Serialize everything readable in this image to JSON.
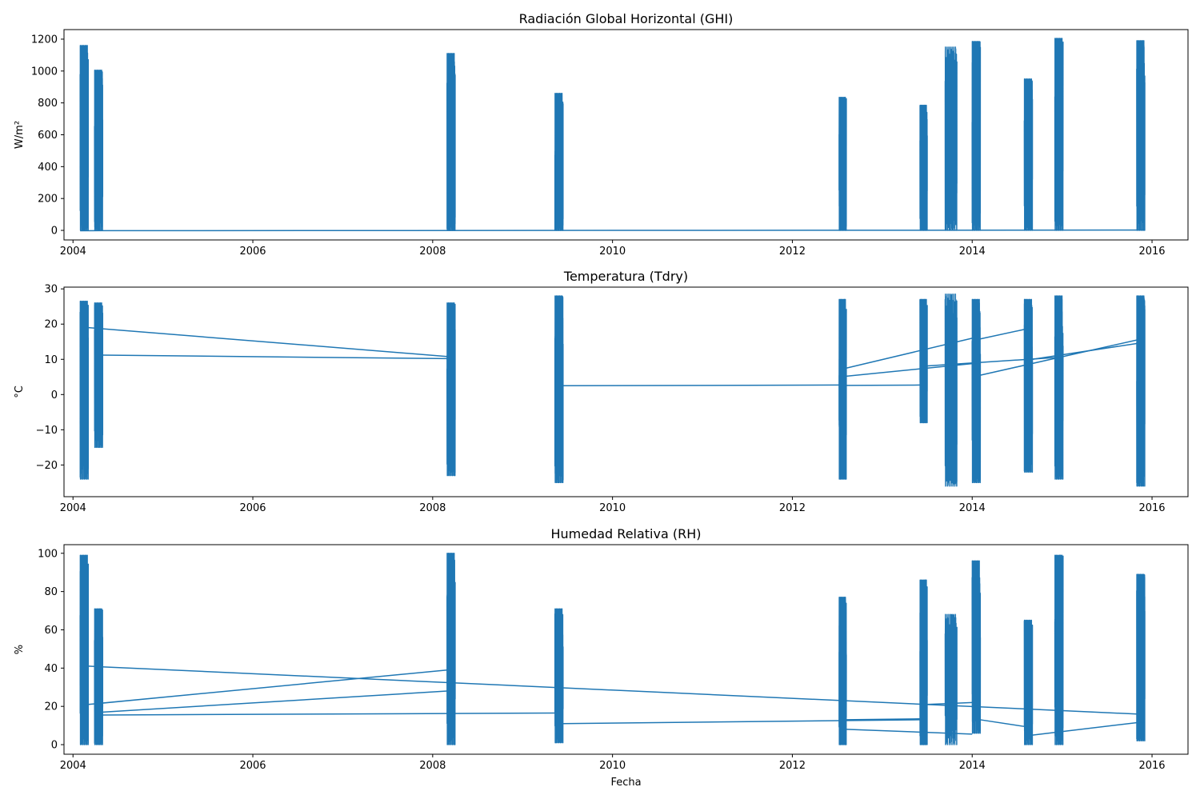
{
  "chart_data": [
    {
      "type": "line",
      "title": "Radiación Global Horizontal (GHI)",
      "xlabel": "",
      "ylabel": "W/m²",
      "xlim": [
        2003.9,
        2016.4
      ],
      "ylim": [
        -60,
        1260
      ],
      "xticks": [
        "2004",
        "2006",
        "2008",
        "2010",
        "2012",
        "2014",
        "2016"
      ],
      "yticks": [
        "0",
        "200",
        "400",
        "600",
        "800",
        "1000",
        "1200"
      ],
      "grid": false,
      "color": "#1f77b4",
      "bursts": [
        {
          "x0": 2004.08,
          "x1": 2004.17,
          "high": 1160,
          "low": 0
        },
        {
          "x0": 2004.24,
          "x1": 2004.33,
          "high": 1005,
          "low": 0
        },
        {
          "x0": 2008.16,
          "x1": 2008.25,
          "high": 1110,
          "low": 0
        },
        {
          "x0": 2009.36,
          "x1": 2009.45,
          "high": 860,
          "low": 0
        },
        {
          "x0": 2012.52,
          "x1": 2012.6,
          "high": 835,
          "low": 0
        },
        {
          "x0": 2013.42,
          "x1": 2013.5,
          "high": 785,
          "low": 0
        },
        {
          "x0": 2013.7,
          "x1": 2013.83,
          "high": 1150,
          "low": 0
        },
        {
          "x0": 2014.0,
          "x1": 2014.09,
          "high": 1185,
          "low": 0
        },
        {
          "x0": 2014.58,
          "x1": 2014.67,
          "high": 950,
          "low": 0
        },
        {
          "x0": 2014.92,
          "x1": 2015.01,
          "high": 1205,
          "low": 0
        },
        {
          "x0": 2015.83,
          "x1": 2015.92,
          "high": 1190,
          "low": 0
        }
      ],
      "connectors": [
        {
          "x": [
            2004.08,
            2015.92
          ],
          "y": [
            -2,
            2
          ]
        }
      ]
    },
    {
      "type": "line",
      "title": "Temperatura (Tdry)",
      "xlabel": "",
      "ylabel": "°C",
      "xlim": [
        2003.9,
        2016.4
      ],
      "ylim": [
        -29,
        30.5
      ],
      "xticks": [
        "2004",
        "2006",
        "2008",
        "2010",
        "2012",
        "2014",
        "2016"
      ],
      "yticks": [
        "−20",
        "−10",
        "0",
        "10",
        "20",
        "30"
      ],
      "grid": false,
      "color": "#1f77b4",
      "bursts": [
        {
          "x0": 2004.08,
          "x1": 2004.17,
          "high": 26.5,
          "low": -24
        },
        {
          "x0": 2004.24,
          "x1": 2004.33,
          "high": 26,
          "low": -15
        },
        {
          "x0": 2008.16,
          "x1": 2008.25,
          "high": 26,
          "low": -23
        },
        {
          "x0": 2009.36,
          "x1": 2009.45,
          "high": 28,
          "low": -25
        },
        {
          "x0": 2012.52,
          "x1": 2012.6,
          "high": 27,
          "low": -24
        },
        {
          "x0": 2013.42,
          "x1": 2013.5,
          "high": 27,
          "low": -8
        },
        {
          "x0": 2013.7,
          "x1": 2013.83,
          "high": 28.5,
          "low": -26
        },
        {
          "x0": 2014.0,
          "x1": 2014.09,
          "high": 27,
          "low": -25
        },
        {
          "x0": 2014.58,
          "x1": 2014.67,
          "high": 27,
          "low": -22
        },
        {
          "x0": 2014.92,
          "x1": 2015.01,
          "high": 28,
          "low": -24
        },
        {
          "x0": 2015.83,
          "x1": 2015.92,
          "high": 28,
          "low": -26
        }
      ],
      "connectors": [
        {
          "x": [
            2004.17,
            2008.16
          ],
          "y": [
            19,
            10.8
          ]
        },
        {
          "x": [
            2004.33,
            2008.16
          ],
          "y": [
            11.2,
            10.2
          ]
        },
        {
          "x": [
            2009.45,
            2012.52
          ],
          "y": [
            2.5,
            2.7
          ]
        },
        {
          "x": [
            2012.6,
            2013.42
          ],
          "y": [
            2.6,
            2.7
          ]
        },
        {
          "x": [
            2012.6,
            2014.0
          ],
          "y": [
            7.5,
            16
          ]
        },
        {
          "x": [
            2012.6,
            2014.09
          ],
          "y": [
            5.2,
            9
          ]
        },
        {
          "x": [
            2014.09,
            2014.58
          ],
          "y": [
            15.8,
            18.5
          ]
        },
        {
          "x": [
            2013.42,
            2014.92
          ],
          "y": [
            8,
            10.5
          ]
        },
        {
          "x": [
            2014.09,
            2015.92
          ],
          "y": [
            5.5,
            16
          ]
        },
        {
          "x": [
            2014.67,
            2015.83
          ],
          "y": [
            10,
            14.5
          ]
        }
      ]
    },
    {
      "type": "line",
      "title": "Humedad Relativa (RH)",
      "xlabel": "Fecha",
      "ylabel": "%",
      "xlim": [
        2003.9,
        2016.4
      ],
      "ylim": [
        -5,
        104.5
      ],
      "xticks": [
        "2004",
        "2006",
        "2008",
        "2010",
        "2012",
        "2014",
        "2016"
      ],
      "yticks": [
        "0",
        "20",
        "40",
        "60",
        "80",
        "100"
      ],
      "grid": false,
      "color": "#1f77b4",
      "bursts": [
        {
          "x0": 2004.08,
          "x1": 2004.17,
          "high": 99,
          "low": 0
        },
        {
          "x0": 2004.24,
          "x1": 2004.33,
          "high": 71,
          "low": 0
        },
        {
          "x0": 2008.16,
          "x1": 2008.25,
          "high": 100,
          "low": 0
        },
        {
          "x0": 2009.36,
          "x1": 2009.45,
          "high": 71,
          "low": 1
        },
        {
          "x0": 2012.52,
          "x1": 2012.6,
          "high": 77,
          "low": 0
        },
        {
          "x0": 2013.42,
          "x1": 2013.5,
          "high": 86,
          "low": 0
        },
        {
          "x0": 2013.7,
          "x1": 2013.83,
          "high": 68,
          "low": 0
        },
        {
          "x0": 2014.0,
          "x1": 2014.09,
          "high": 96,
          "low": 6
        },
        {
          "x0": 2014.58,
          "x1": 2014.67,
          "high": 65,
          "low": 0
        },
        {
          "x0": 2014.92,
          "x1": 2015.01,
          "high": 99,
          "low": 0
        },
        {
          "x0": 2015.83,
          "x1": 2015.92,
          "high": 89,
          "low": 2
        }
      ],
      "connectors": [
        {
          "x": [
            2004.17,
            2015.83
          ],
          "y": [
            41,
            16
          ]
        },
        {
          "x": [
            2004.17,
            2008.16
          ],
          "y": [
            21,
            39
          ]
        },
        {
          "x": [
            2004.33,
            2008.16
          ],
          "y": [
            17,
            28
          ]
        },
        {
          "x": [
            2004.33,
            2009.36
          ],
          "y": [
            15.5,
            16.5
          ]
        },
        {
          "x": [
            2009.45,
            2013.42
          ],
          "y": [
            11,
            13
          ]
        },
        {
          "x": [
            2012.6,
            2013.42
          ],
          "y": [
            13,
            13.5
          ]
        },
        {
          "x": [
            2012.6,
            2014.0
          ],
          "y": [
            8,
            5.5
          ]
        },
        {
          "x": [
            2013.5,
            2014.0
          ],
          "y": [
            21,
            22
          ]
        },
        {
          "x": [
            2014.09,
            2014.58
          ],
          "y": [
            13,
            9.5
          ]
        },
        {
          "x": [
            2014.67,
            2015.92
          ],
          "y": [
            5,
            12
          ]
        }
      ]
    }
  ]
}
